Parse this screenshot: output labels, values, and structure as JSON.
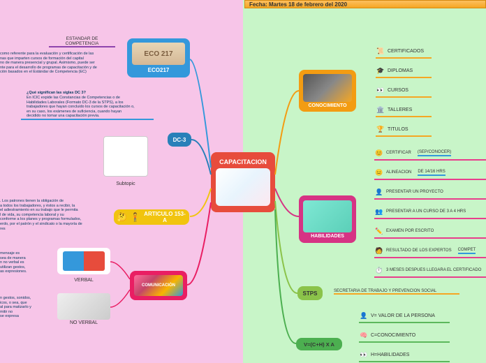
{
  "date_bar": "Fecha: Martes 18 de febrero del 2020",
  "center": {
    "label": "CAPACITACION",
    "bg": "#e74c3c"
  },
  "eco217": {
    "label": "ECO217",
    "bg": "#3498db",
    "header": "ESTANDAR DE COMPETENCIA"
  },
  "eco_desc": "como referente para la evaluación y certificación de las\nnas que imparten cursos de formación del capital\nno de manera presencial y grupal. Asimismo, puede ser\nnte para el desarrollo de programas de capacitación y de\nción basados en el Estándar de Competencia (EC)",
  "dc3": {
    "label": "DC-3",
    "bg": "#2980b9"
  },
  "dc3_q": "¿Qué significan las siglas DC 3?",
  "dc3_desc": "En ICIC expide las Constancias de Competencias o de\nHabilidades Laborales (Formato DC-3 de la STPS), a los\ntrabajadores que hayan concluido los cursos de capacitación o,\nen su caso, los exámenes de suficiencia, cuando hayan\ndecidido no tomar una capacitación previa.",
  "subtopic": "Subtopic",
  "articulo": {
    "label": "ARTICULO 153-A",
    "bg": "#f1c40f"
  },
  "articulo_desc": ". Los patrones tienen la obligación de\na todos los trabajadores, y éstos a recibir, la\nel adiestramiento en su trabajo que le permita\nl de vida, su competencia laboral y su\nconforme a los planes y programas formulados,\nerdo, por el patrón y el sindicato o la mayoría de\nres",
  "comunicacion": {
    "label": "COMUNICACIÓN",
    "bg": "#e91e63"
  },
  "verbal": {
    "label": "VERBAL"
  },
  "verbal_desc": "mensaje es\nsea de manera\nn no verbal es\nutilizan gestos,\nas expresiones.",
  "noverbal": {
    "label": "NO VERBAL"
  },
  "noverbal_desc": "n gestos, sonidos,\nicos, o sea, que\nal para matizarlo y\nmitir no\nse expresa",
  "conocimiento": {
    "label": "CONOCIMIENTO",
    "bg": "#f39c12"
  },
  "conocimiento_items": [
    {
      "icon": "📜",
      "text": "CERTIFICADOS"
    },
    {
      "icon": "🎓",
      "text": "DIPLOMAS"
    },
    {
      "icon": "👀",
      "text": "CURSOS"
    },
    {
      "icon": "🏛️",
      "text": "TALLERES"
    },
    {
      "icon": "🏆",
      "text": "TITULOS"
    }
  ],
  "habilidades": {
    "label": "HABILIDADES",
    "bg": "#d63384"
  },
  "habilidades_items": [
    {
      "icon": "😊",
      "text": "CERTIFICAR",
      "extra": "(SEP/CONOCER)"
    },
    {
      "icon": "😐",
      "text": "ALINEACION",
      "extra": "DE 14/16 HRS"
    },
    {
      "icon": "👤",
      "text": "PRESENTAR UN PROYECTO",
      "extra": ""
    },
    {
      "icon": "👥",
      "text": "PRESENTAR A UN CURSO DE 3 A 4 HRS",
      "extra": ""
    },
    {
      "icon": "✏️",
      "text": "EXAMEN POR ESCRITO",
      "extra": ""
    },
    {
      "icon": "🧑",
      "text": "RESULTADO DE LOS EXPERTOS",
      "extra": "COMPET"
    },
    {
      "icon": "⏱️",
      "text": "3 MESES DESPUES LLEGARA EL CERTIFICADO",
      "extra": ""
    }
  ],
  "stps": {
    "label": "STPS",
    "bg": "#8bc34a",
    "full": "SECRETARIA DE TRABAJO Y PREVENCION SOCIAL"
  },
  "formula": {
    "label": "V=(C+H) X A",
    "bg": "#4caf50"
  },
  "formula_items": [
    {
      "icon": "👤",
      "text": "V= VALOR DE LA PERSONA"
    },
    {
      "icon": "🧠",
      "text": "C=CONOCIMIENTO"
    },
    {
      "icon": "👀",
      "text": "H=HABILIDADES"
    }
  ]
}
